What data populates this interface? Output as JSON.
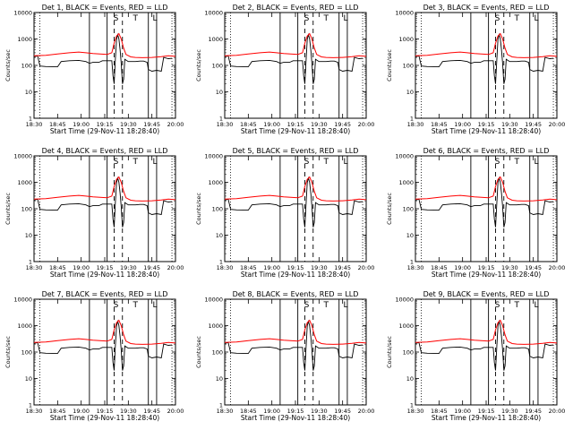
{
  "chart_data": {
    "type": "line",
    "scale": "log-y",
    "ylabel": "Counts/sec",
    "xlabel": "Start Time (29-Nov-11 18:28:40)",
    "yticks": [
      {
        "v": 1,
        "label": "1"
      },
      {
        "v": 10,
        "label": "10"
      },
      {
        "v": 100,
        "label": "100"
      },
      {
        "v": 1000,
        "label": "1000"
      },
      {
        "v": 10000,
        "label": "10000"
      }
    ],
    "xticks_a": [
      "18:30",
      "18:45",
      "19:00",
      "19:15",
      "19:30",
      "19:45",
      "20:00"
    ],
    "xticks_b": [
      "18:30",
      "18:45",
      "19:00",
      "19:15",
      "19:30",
      "19:45",
      "20:00"
    ],
    "xrange_min": [
      0,
      120
    ],
    "ylim": [
      1,
      10000
    ],
    "grid": false,
    "region_letters": [
      "S",
      "T",
      "L"
    ],
    "colors": {
      "events": "#000000",
      "lld": "#ff0000"
    },
    "series_meaning": {
      "black": "Events",
      "red": "LLD"
    },
    "panels": [
      {
        "title": "Det 1, BLACK = Events, RED = LLD",
        "solid": [
          47,
          62,
          97,
          104
        ],
        "dashed": [
          68,
          75
        ],
        "dotted": [
          5,
          117
        ],
        "ticks": "a"
      },
      {
        "title": "Det 2, BLACK = Events, RED = LLD",
        "solid": [
          47,
          62,
          97,
          104
        ],
        "dashed": [
          68,
          75
        ],
        "dotted": [
          5,
          117
        ],
        "ticks": "b"
      },
      {
        "title": "Det 3, BLACK = Events, RED = LLD",
        "solid": [
          47,
          62,
          97,
          104
        ],
        "dashed": [
          68,
          75
        ],
        "dotted": [
          5,
          117
        ],
        "ticks": "b"
      },
      {
        "title": "Det 4, BLACK = Events, RED = LLD",
        "solid": [
          47,
          62,
          97,
          104
        ],
        "dashed": [
          68,
          75
        ],
        "dotted": [
          5,
          117
        ],
        "ticks": "a"
      },
      {
        "title": "Det 5, BLACK = Events, RED = LLD",
        "solid": [
          47,
          62,
          97,
          104
        ],
        "dashed": [
          68,
          75
        ],
        "dotted": [
          5,
          117
        ],
        "ticks": "b"
      },
      {
        "title": "Det 6, BLACK = Events, RED = LLD",
        "solid": [
          47,
          62,
          97,
          104
        ],
        "dashed": [
          68,
          75
        ],
        "dotted": [
          5,
          117
        ],
        "ticks": "b"
      },
      {
        "title": "Det 7, BLACK = Events, RED = LLD",
        "solid": [
          47,
          62,
          97,
          104
        ],
        "dashed": [
          68,
          75
        ],
        "dotted": [
          5,
          117
        ],
        "ticks": "a"
      },
      {
        "title": "Det 8, BLACK = Events, RED = LLD",
        "solid": [
          47,
          62,
          97,
          104
        ],
        "dashed": [
          68,
          75
        ],
        "dotted": [
          5,
          117
        ],
        "ticks": "b"
      },
      {
        "title": "Det 9, BLACK = Events, RED = LLD",
        "solid": [
          47,
          62,
          97,
          104
        ],
        "dashed": [
          68,
          75
        ],
        "dotted": [
          5,
          117
        ],
        "ticks": "b"
      }
    ],
    "lld_series": [
      [
        0,
        230
      ],
      [
        10,
        240
      ],
      [
        20,
        270
      ],
      [
        30,
        300
      ],
      [
        38,
        320
      ],
      [
        44,
        300
      ],
      [
        50,
        280
      ],
      [
        56,
        270
      ],
      [
        62,
        260
      ],
      [
        66,
        300
      ],
      [
        68,
        700
      ],
      [
        70,
        1300
      ],
      [
        72,
        1600
      ],
      [
        74,
        1000
      ],
      [
        76,
        450
      ],
      [
        78,
        260
      ],
      [
        82,
        210
      ],
      [
        86,
        200
      ],
      [
        92,
        195
      ],
      [
        100,
        200
      ],
      [
        108,
        215
      ],
      [
        114,
        230
      ],
      [
        120,
        220
      ]
    ],
    "events_series": [
      [
        0,
        210
      ],
      [
        3,
        230
      ],
      [
        5,
        95
      ],
      [
        10,
        90
      ],
      [
        20,
        88
      ],
      [
        23,
        140
      ],
      [
        30,
        150
      ],
      [
        38,
        155
      ],
      [
        44,
        140
      ],
      [
        47,
        120
      ],
      [
        50,
        130
      ],
      [
        55,
        130
      ],
      [
        58,
        150
      ],
      [
        62,
        150
      ],
      [
        66,
        150
      ],
      [
        67,
        40
      ],
      [
        68,
        20
      ],
      [
        69,
        160
      ],
      [
        70,
        1000
      ],
      [
        71,
        1450
      ],
      [
        72,
        1000
      ],
      [
        73,
        400
      ],
      [
        74,
        120
      ],
      [
        75,
        20
      ],
      [
        76,
        30
      ],
      [
        77,
        170
      ],
      [
        80,
        140
      ],
      [
        86,
        140
      ],
      [
        90,
        145
      ],
      [
        93,
        145
      ],
      [
        96,
        130
      ],
      [
        97,
        70
      ],
      [
        100,
        60
      ],
      [
        104,
        65
      ],
      [
        108,
        60
      ],
      [
        110,
        200
      ],
      [
        114,
        180
      ],
      [
        117,
        185
      ]
    ]
  }
}
